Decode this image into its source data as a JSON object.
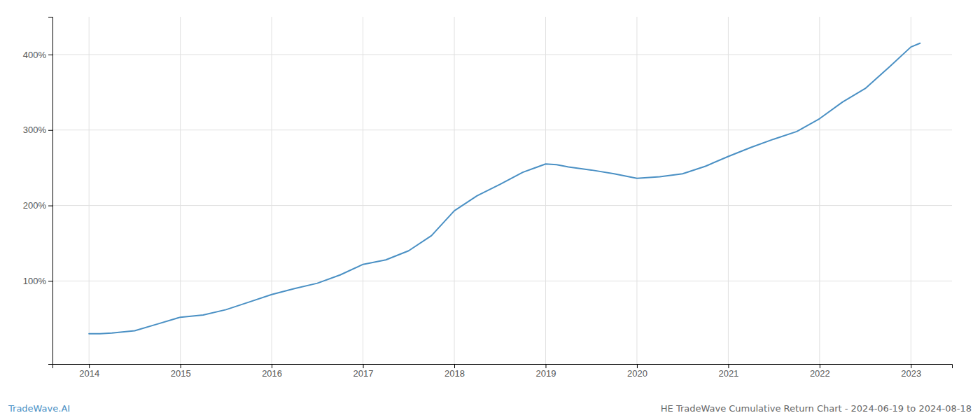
{
  "chart_data": {
    "type": "line",
    "title": "HE TradeWave Cumulative Return Chart - 2024-06-19 to 2024-08-18",
    "annotations": [
      {
        "text": "TradeWave.AI"
      }
    ],
    "color": "#4a90c4",
    "x": [
      2014.0,
      2014.12,
      2014.25,
      2014.5,
      2014.75,
      2015.0,
      2015.25,
      2015.5,
      2015.75,
      2016.0,
      2016.25,
      2016.5,
      2016.75,
      2017.0,
      2017.25,
      2017.5,
      2017.75,
      2018.0,
      2018.25,
      2018.5,
      2018.75,
      2019.0,
      2019.12,
      2019.25,
      2019.5,
      2019.75,
      2020.0,
      2020.25,
      2020.5,
      2020.75,
      2021.0,
      2021.25,
      2021.5,
      2021.75,
      2022.0,
      2022.25,
      2022.5,
      2022.75,
      2023.0,
      2023.1
    ],
    "values": [
      30,
      30,
      31,
      34,
      43,
      52,
      55,
      62,
      72,
      82,
      90,
      97,
      108,
      122,
      128,
      140,
      160,
      193,
      213,
      228,
      244,
      255,
      254,
      251,
      247,
      242,
      236,
      238,
      242,
      252,
      265,
      277,
      288,
      298,
      315,
      337,
      355,
      382,
      410,
      415
    ],
    "xlim": [
      2013.6,
      2023.45
    ],
    "ylim": [
      -10,
      450
    ],
    "xticks": [
      2014,
      2015,
      2016,
      2017,
      2018,
      2019,
      2020,
      2021,
      2022,
      2023
    ],
    "yticks": [
      {
        "value": 100,
        "label": "100%"
      },
      {
        "value": 200,
        "label": "200%"
      },
      {
        "value": 300,
        "label": "300%"
      },
      {
        "value": 400,
        "label": "400%"
      }
    ],
    "grid": true
  }
}
